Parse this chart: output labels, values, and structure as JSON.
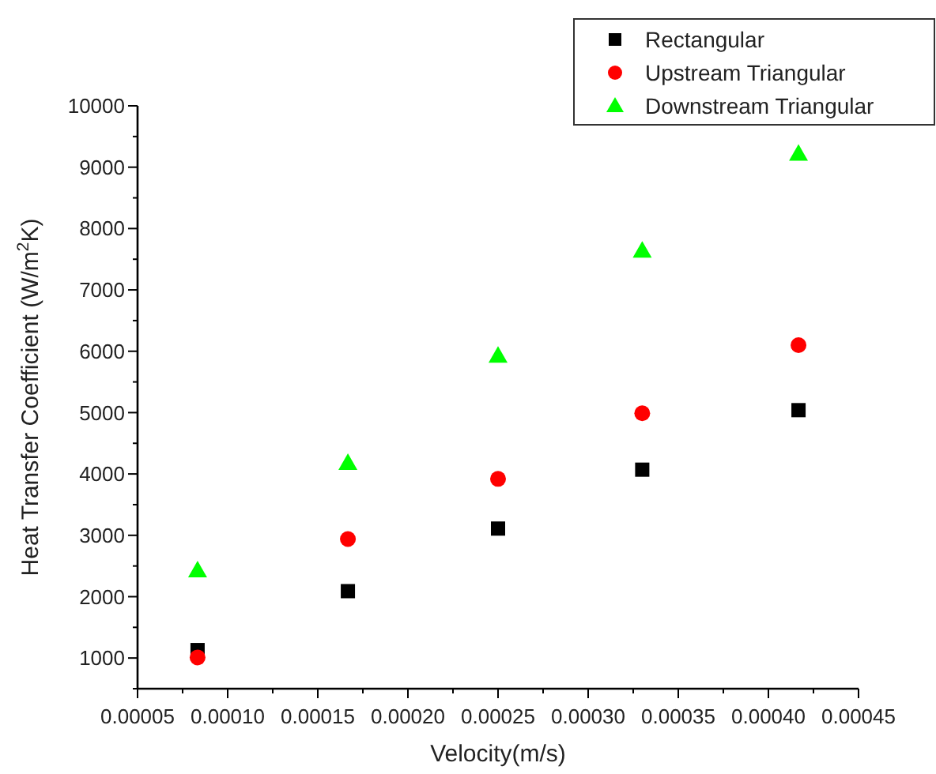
{
  "chart_data": {
    "type": "scatter",
    "xlabel": "Velocity(m/s)",
    "ylabel": "Heat Transfer Coefficient (W/m$^{2}$K)",
    "x": [
      8.33e-05,
      0.0001667,
      0.00025,
      0.00033,
      0.0004167
    ],
    "series": [
      {
        "name": "Rectangular",
        "color": "#000000",
        "marker": "square",
        "values": [
          1130,
          2090,
          3110,
          4070,
          5040
        ]
      },
      {
        "name": "Upstream Triangular",
        "color": "#ff0000",
        "marker": "circle",
        "values": [
          1010,
          2940,
          3920,
          4990,
          6100
        ]
      },
      {
        "name": "Downstream Triangular",
        "color": "#00ff00",
        "marker": "triangle",
        "values": [
          2430,
          4180,
          5930,
          7640,
          9220
        ]
      }
    ],
    "xlim": [
      5e-05,
      0.00045
    ],
    "xticks": [
      {
        "value": 5e-05,
        "label": "0.00005"
      },
      {
        "value": 0.0001,
        "label": "0.00010"
      },
      {
        "value": 0.00015,
        "label": "0.00015"
      },
      {
        "value": 0.0002,
        "label": "0.00020"
      },
      {
        "value": 0.00025,
        "label": "0.00025"
      },
      {
        "value": 0.0003,
        "label": "0.00030"
      },
      {
        "value": 0.00035,
        "label": "0.00035"
      },
      {
        "value": 0.0004,
        "label": "0.00040"
      },
      {
        "value": 0.00045,
        "label": "0.00045"
      }
    ],
    "ylim": [
      500,
      10000
    ],
    "yticks": [
      1000,
      2000,
      3000,
      4000,
      5000,
      6000,
      7000,
      8000,
      9000,
      10000
    ],
    "legend": "top right"
  }
}
